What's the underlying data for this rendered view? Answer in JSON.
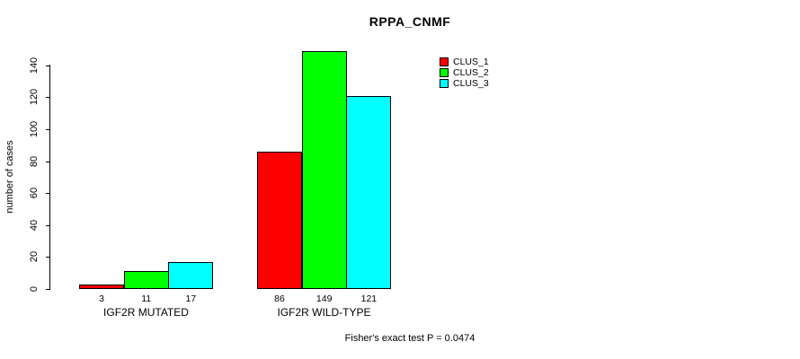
{
  "chart_data": {
    "type": "bar",
    "title": "RPPA_CNMF",
    "ylabel": "number of cases",
    "ylim": [
      0,
      140
    ],
    "yticks": [
      0,
      20,
      40,
      60,
      80,
      100,
      120,
      140
    ],
    "categories": [
      "IGF2R MUTATED",
      "IGF2R WILD-TYPE"
    ],
    "series": [
      {
        "name": "CLUS_1",
        "color": "#ff0000",
        "values": [
          3,
          86
        ]
      },
      {
        "name": "CLUS_2",
        "color": "#00ff00",
        "values": [
          11,
          149
        ]
      },
      {
        "name": "CLUS_3",
        "color": "#00ffff",
        "values": [
          17,
          121
        ]
      }
    ],
    "bar_value_labels": [
      [
        3,
        11,
        17
      ],
      [
        86,
        149,
        121
      ]
    ],
    "legend_position": "top-right",
    "grid": false,
    "annotation": "Fisher's exact test P = 0.0474",
    "background_color": "#ffffff",
    "text_color": "#000000"
  }
}
